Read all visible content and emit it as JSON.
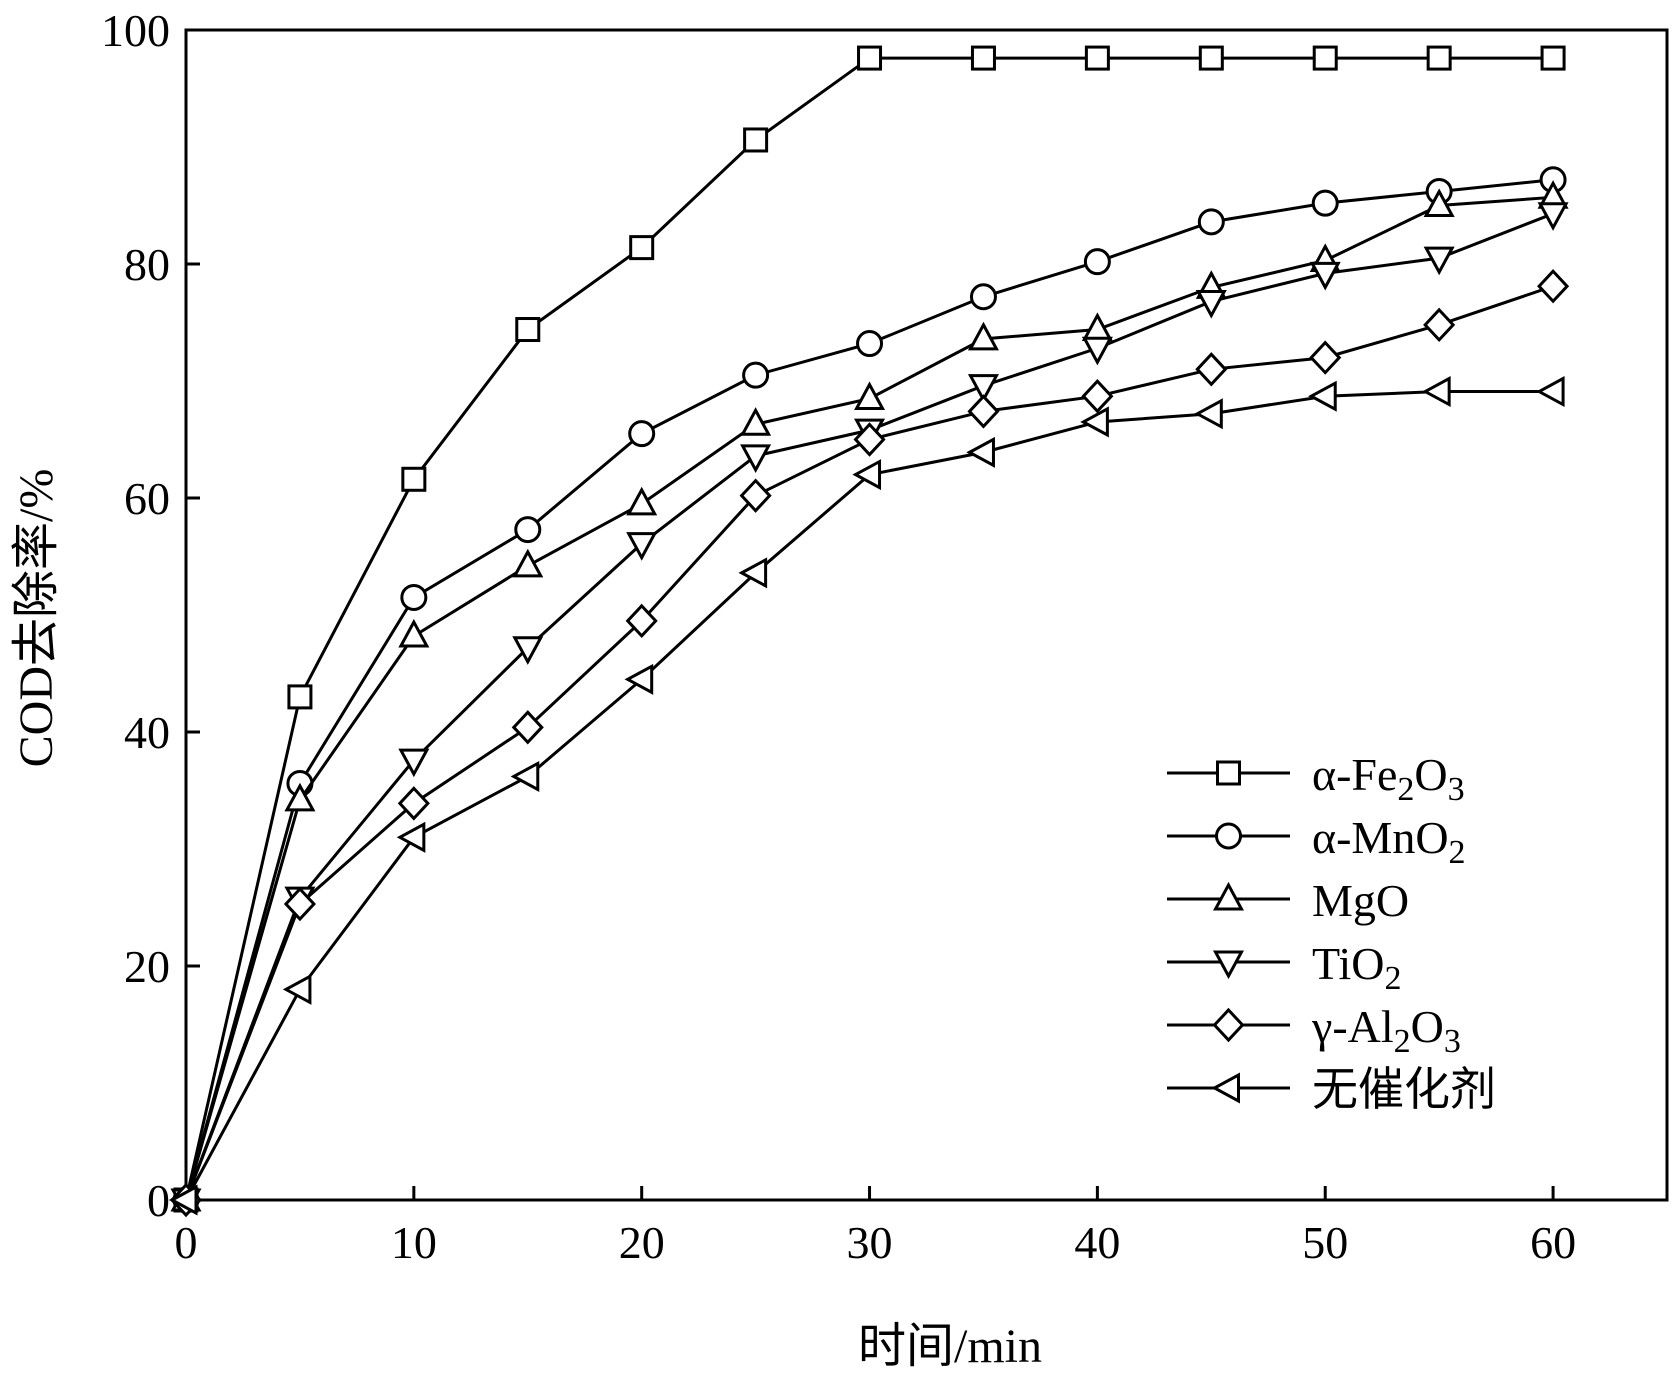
{
  "chart_data": {
    "type": "line",
    "xlabel": "时间/min",
    "ylabel": "COD去除率/%",
    "xlim": [
      0,
      65
    ],
    "ylim": [
      0,
      100
    ],
    "xticks": [
      0,
      10,
      20,
      30,
      40,
      50,
      60
    ],
    "yticks": [
      0,
      20,
      40,
      60,
      80,
      100
    ],
    "legend_position": "bottom-right",
    "grid": false,
    "series": [
      {
        "name_base": "α-Fe",
        "name_sub1": "2",
        "name_mid": "O",
        "name_sub2": "3",
        "marker": "square",
        "x": [
          0,
          5,
          10,
          15,
          20,
          25,
          30,
          35,
          40,
          45,
          50,
          55,
          60
        ],
        "y": [
          0,
          43,
          61.6,
          74.4,
          81.4,
          90.6,
          97.6,
          97.6,
          97.6,
          97.6,
          97.6,
          97.6,
          97.6
        ]
      },
      {
        "name_base": "α-MnO",
        "name_sub1": "2",
        "name_mid": "",
        "name_sub2": "",
        "marker": "circle",
        "x": [
          0,
          5,
          10,
          15,
          20,
          25,
          30,
          35,
          40,
          45,
          50,
          55,
          60
        ],
        "y": [
          0,
          35.6,
          51.5,
          57.3,
          65.5,
          70.5,
          73.2,
          77.2,
          80.2,
          83.6,
          85.2,
          86.2,
          87.2
        ]
      },
      {
        "name_base": "MgO",
        "name_sub1": "",
        "name_mid": "",
        "name_sub2": "",
        "marker": "triangle-up",
        "x": [
          0,
          5,
          10,
          15,
          20,
          25,
          30,
          35,
          40,
          45,
          50,
          55,
          60
        ],
        "y": [
          0,
          34.2,
          48.2,
          54.2,
          59.5,
          66.3,
          68.5,
          73.6,
          74.4,
          78,
          80.3,
          85,
          85.7
        ]
      },
      {
        "name_base": "TiO",
        "name_sub1": "2",
        "name_mid": "",
        "name_sub2": "",
        "marker": "triangle-down",
        "x": [
          0,
          5,
          10,
          15,
          20,
          25,
          30,
          35,
          40,
          45,
          50,
          55,
          60
        ],
        "y": [
          0,
          25.8,
          37.6,
          47.2,
          56.1,
          63.6,
          65.8,
          69.6,
          72.8,
          76.8,
          79.2,
          80.5,
          84.3
        ]
      },
      {
        "name_base": "γ-Al",
        "name_sub1": "2",
        "name_mid": "O",
        "name_sub2": "3",
        "marker": "diamond",
        "x": [
          0,
          5,
          10,
          15,
          20,
          25,
          30,
          35,
          40,
          45,
          50,
          55,
          60
        ],
        "y": [
          0,
          25.3,
          33.9,
          40.4,
          49.5,
          60.2,
          65,
          67.4,
          68.7,
          71,
          72,
          74.8,
          78.1
        ]
      },
      {
        "name_base": "无催化剂",
        "name_sub1": "",
        "name_mid": "",
        "name_sub2": "",
        "marker": "triangle-left",
        "x": [
          0,
          5,
          10,
          15,
          20,
          25,
          30,
          35,
          40,
          45,
          50,
          55,
          60
        ],
        "y": [
          0,
          18,
          31,
          36.2,
          44.5,
          53.6,
          62,
          63.9,
          66.5,
          67.2,
          68.7,
          69.1,
          69.1
        ]
      }
    ]
  }
}
